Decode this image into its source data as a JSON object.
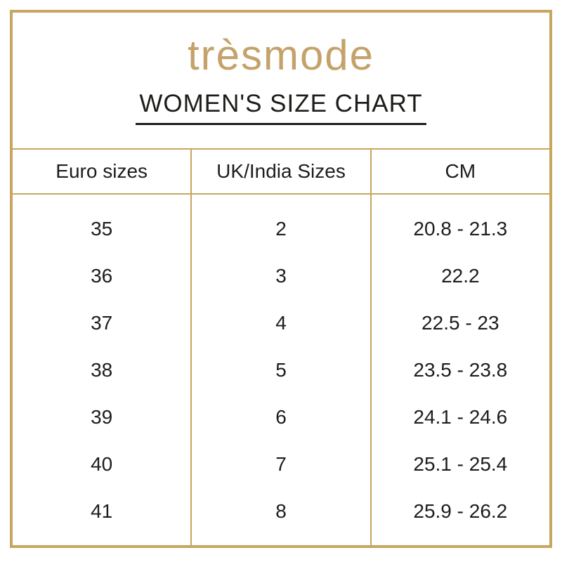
{
  "brand": {
    "logo_text": "trèsmode"
  },
  "title": "WOMEN'S SIZE CHART",
  "colors": {
    "gold_border": "#C7A660",
    "logo_gold": "#C4A26A",
    "text": "#1D1D1B",
    "background": "#FFFFFF"
  },
  "table": {
    "headers": [
      "Euro sizes",
      "UK/India Sizes",
      "CM"
    ],
    "rows": [
      {
        "euro": "35",
        "uk": "2",
        "cm": "20.8 - 21.3"
      },
      {
        "euro": "36",
        "uk": "3",
        "cm": "22.2"
      },
      {
        "euro": "37",
        "uk": "4",
        "cm": "22.5 - 23"
      },
      {
        "euro": "38",
        "uk": "5",
        "cm": "23.5 - 23.8"
      },
      {
        "euro": "39",
        "uk": "6",
        "cm": "24.1 - 24.6"
      },
      {
        "euro": "40",
        "uk": "7",
        "cm": "25.1 - 25.4"
      },
      {
        "euro": "41",
        "uk": "8",
        "cm": "25.9 - 26.2"
      }
    ]
  },
  "chart_data": {
    "type": "table",
    "title": "WOMEN'S SIZE CHART",
    "columns": [
      "Euro sizes",
      "UK/India Sizes",
      "CM"
    ],
    "rows": [
      [
        "35",
        "2",
        "20.8 - 21.3"
      ],
      [
        "36",
        "3",
        "22.2"
      ],
      [
        "37",
        "4",
        "22.5 - 23"
      ],
      [
        "38",
        "5",
        "23.5 - 23.8"
      ],
      [
        "39",
        "6",
        "24.1 - 24.6"
      ],
      [
        "40",
        "7",
        "25.1 - 25.4"
      ],
      [
        "41",
        "8",
        "25.9 - 26.2"
      ]
    ]
  }
}
